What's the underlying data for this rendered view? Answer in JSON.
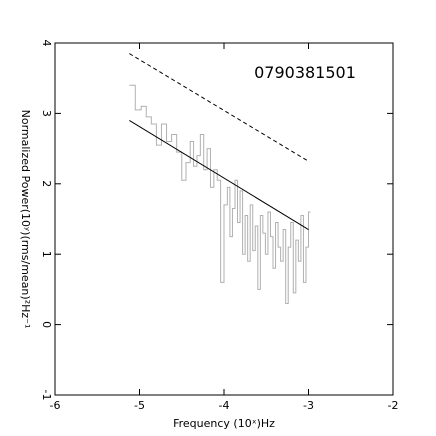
{
  "chart_data": {
    "type": "line",
    "title": "",
    "annotation": "0790381501",
    "xlabel": "Frequency (10ˣ)Hz",
    "ylabel": "Normalized Power(10ʸ)(rms/mean)²Hz⁻¹",
    "xlim": [
      -6,
      -2
    ],
    "ylim": [
      -1,
      4
    ],
    "x_ticks": [
      -6,
      -5,
      -4,
      -3,
      -2
    ],
    "y_ticks": [
      -1,
      0,
      1,
      2,
      3,
      4
    ],
    "grid": false,
    "legend": "none",
    "series": [
      {
        "style": "step",
        "color": "#b0b0b0",
        "x": [
          -5.12,
          -5.05,
          -4.98,
          -4.92,
          -4.86,
          -4.8,
          -4.74,
          -4.68,
          -4.62,
          -4.56,
          -4.5,
          -4.45,
          -4.4,
          -4.36,
          -4.32,
          -4.28,
          -4.24,
          -4.2,
          -4.16,
          -4.12,
          -4.08,
          -4.04,
          -4.0,
          -3.96,
          -3.93,
          -3.9,
          -3.87,
          -3.84,
          -3.81,
          -3.78,
          -3.75,
          -3.72,
          -3.69,
          -3.66,
          -3.63,
          -3.6,
          -3.57,
          -3.54,
          -3.51,
          -3.48,
          -3.45,
          -3.42,
          -3.39,
          -3.36,
          -3.33,
          -3.3,
          -3.27,
          -3.24,
          -3.21,
          -3.18,
          -3.15,
          -3.12,
          -3.09,
          -3.06,
          -3.03,
          -3.0
        ],
        "y": [
          3.4,
          3.05,
          3.1,
          2.95,
          2.85,
          2.55,
          2.85,
          2.6,
          2.7,
          2.45,
          2.05,
          2.3,
          2.6,
          2.25,
          2.4,
          2.7,
          2.2,
          2.5,
          1.95,
          2.2,
          2.05,
          0.6,
          1.7,
          1.95,
          1.25,
          1.65,
          2.05,
          1.45,
          1.9,
          1.0,
          1.55,
          0.9,
          1.7,
          1.05,
          1.4,
          0.5,
          1.55,
          1.3,
          1.0,
          1.6,
          1.25,
          0.8,
          1.45,
          1.1,
          0.9,
          1.35,
          0.3,
          1.1,
          1.45,
          0.45,
          1.2,
          0.9,
          1.55,
          0.6,
          1.1,
          1.6
        ]
      },
      {
        "style": "solid",
        "color": "#000000",
        "x": [
          -5.12,
          -3.0
        ],
        "y": [
          2.9,
          1.35
        ]
      },
      {
        "style": "dashed",
        "color": "#000000",
        "x": [
          -5.12,
          -3.0
        ],
        "y": [
          3.85,
          2.32
        ]
      }
    ]
  }
}
